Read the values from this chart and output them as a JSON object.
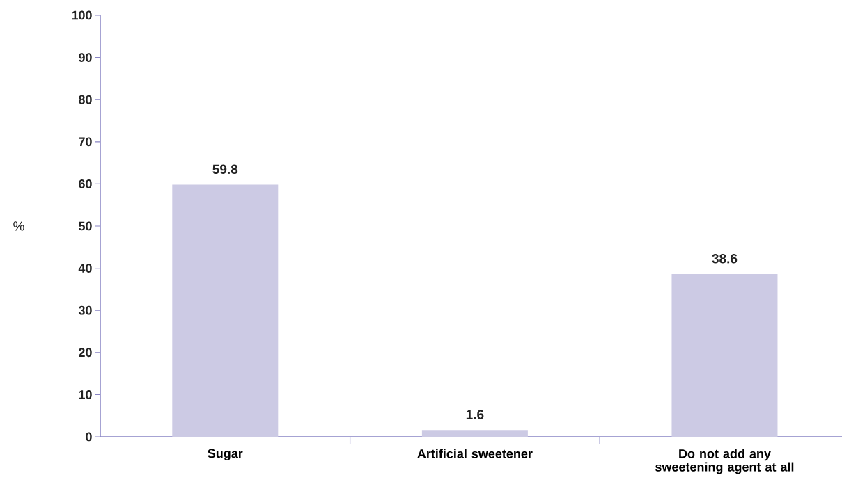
{
  "chart_data": {
    "type": "bar",
    "ylabel": "%",
    "categories": [
      "Sugar",
      "Artificial sweetener",
      "Do not add any sweetening agent at all"
    ],
    "values": [
      59.8,
      1.6,
      38.6
    ],
    "color": "#cccae4",
    "ylim": [
      0,
      100
    ],
    "yticks": [
      0,
      10,
      20,
      30,
      40,
      50,
      60,
      70,
      80,
      90,
      100
    ],
    "data_labels": true
  }
}
